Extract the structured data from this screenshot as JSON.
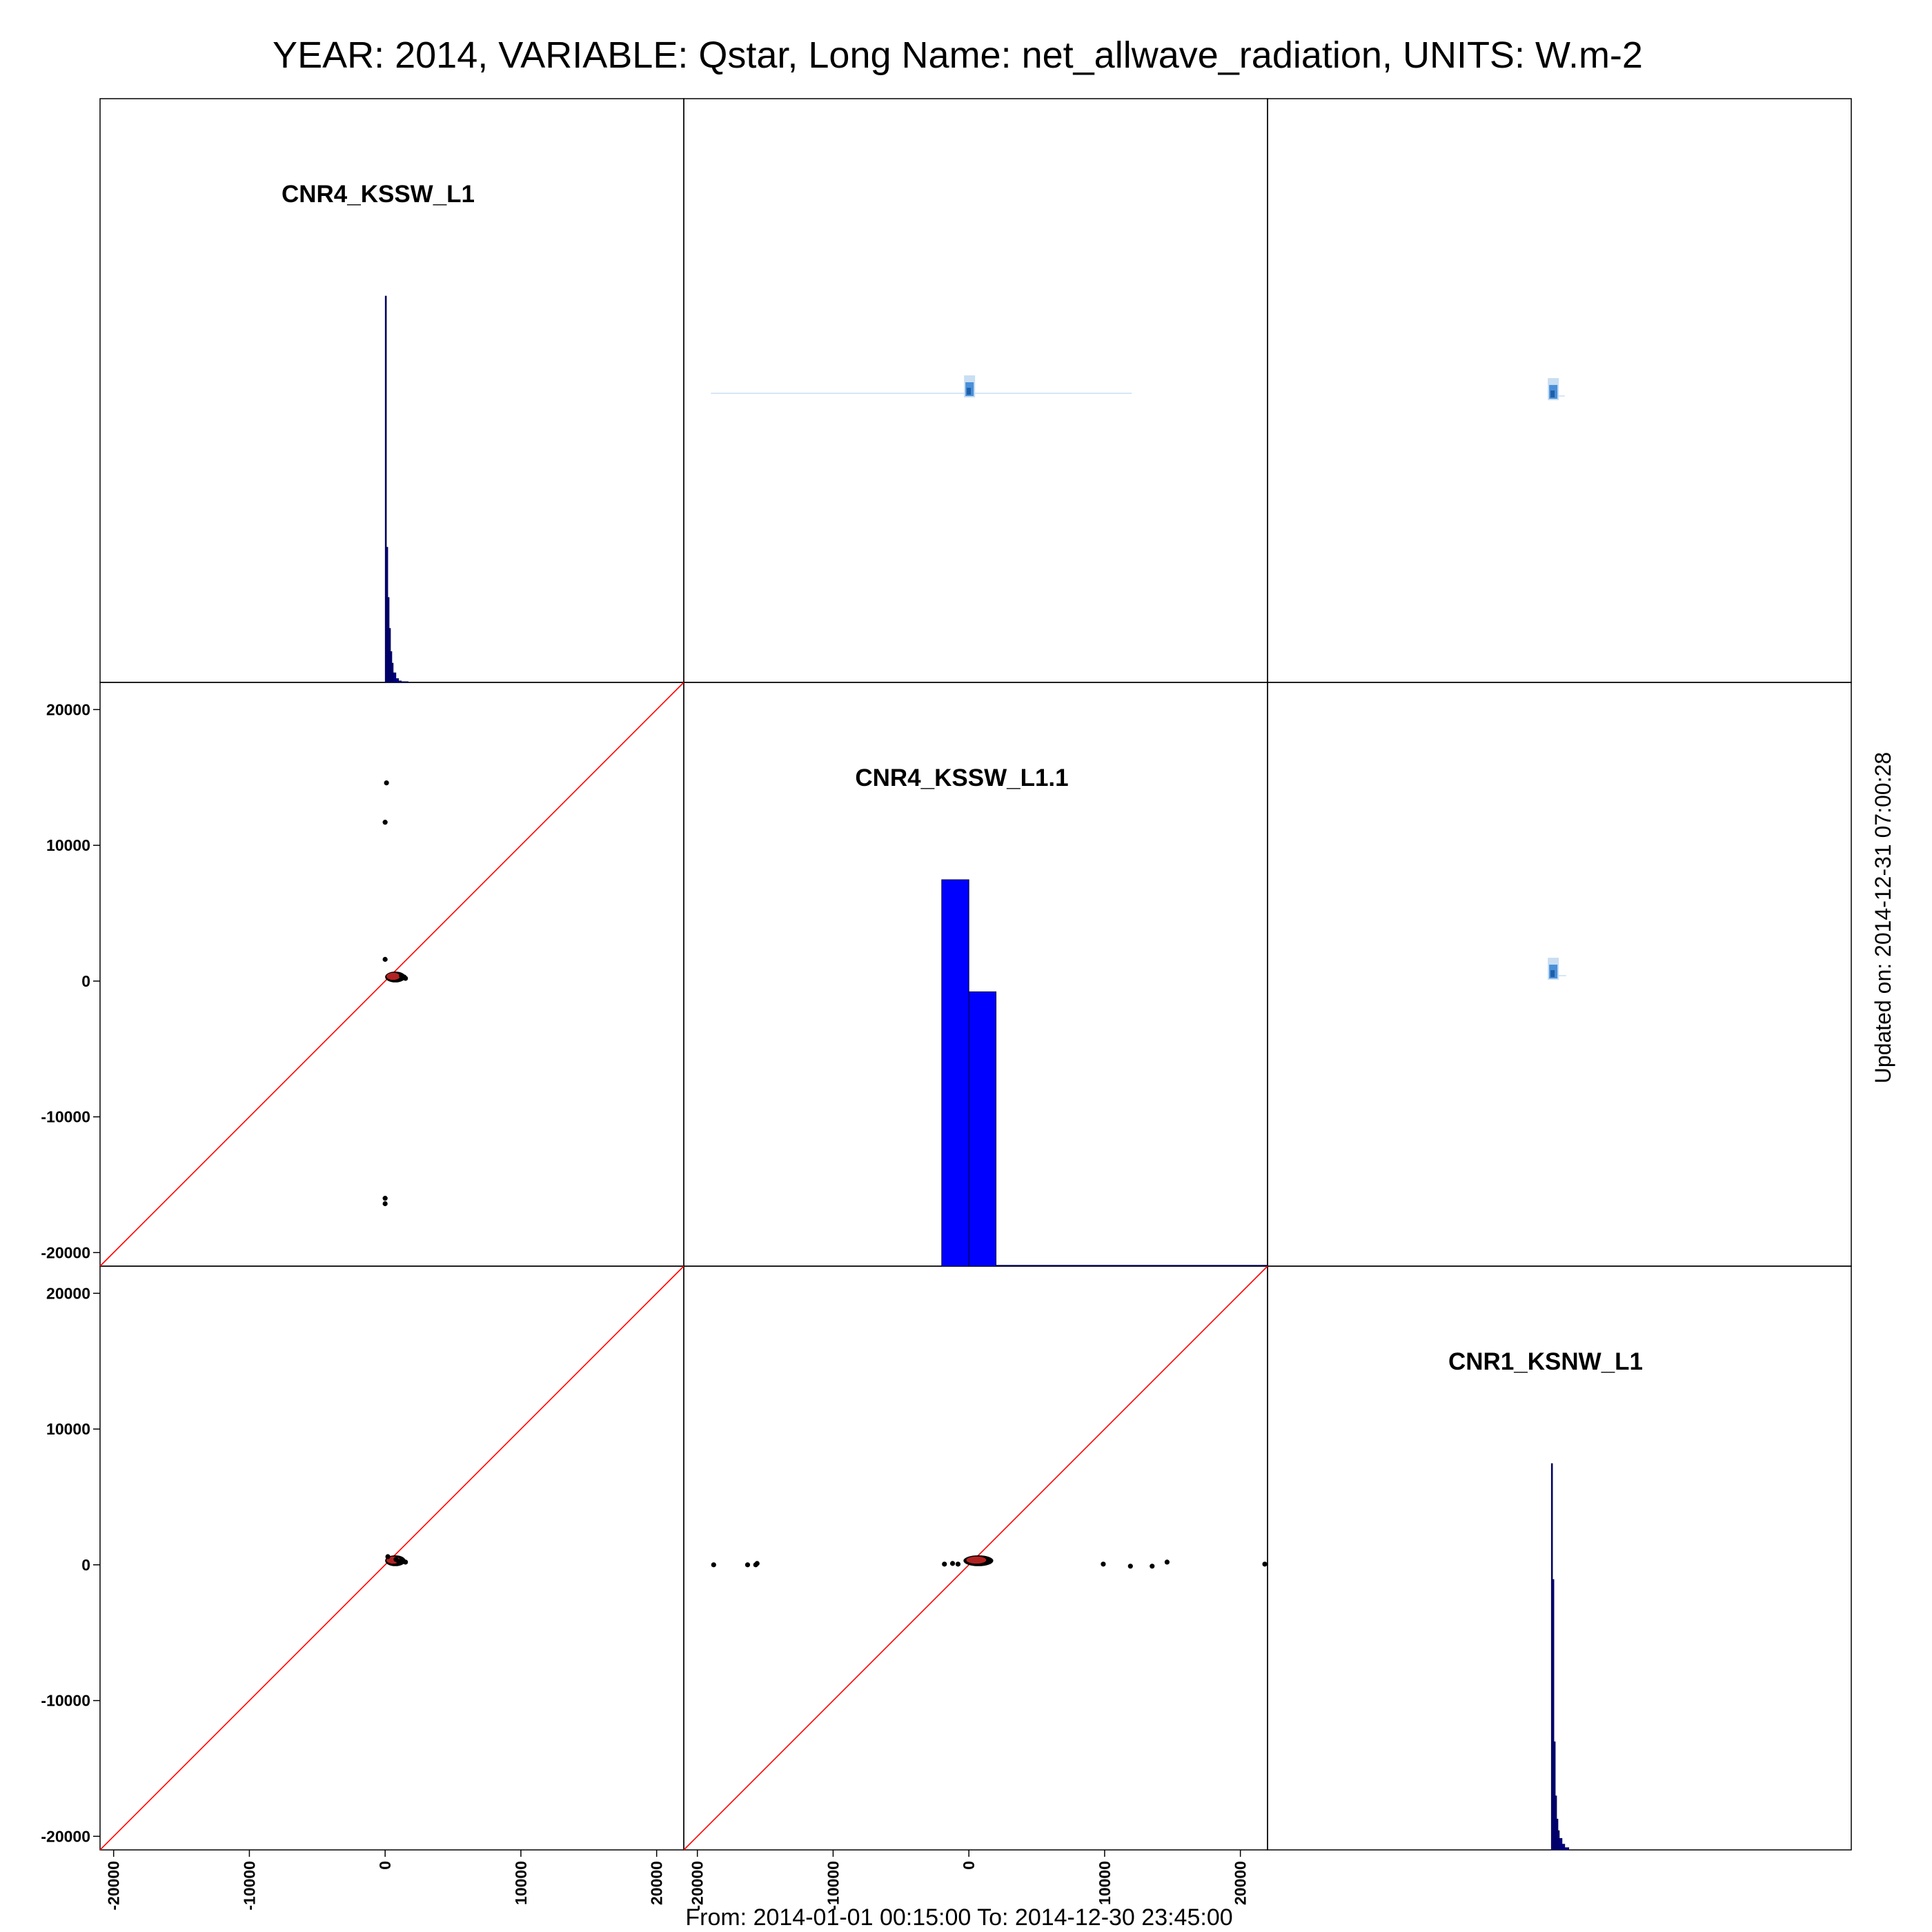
{
  "figure": {
    "title": "YEAR: 2014, VARIABLE: Qstar, Long Name: net_allwave_radiation, UNITS: W.m-2",
    "from_to": "From: 2014-01-01 00:15:00 To: 2014-12-30 23:45:00",
    "updated": "Updated on: 2014-12-31 07:00:28"
  },
  "chart_data": {
    "type": "scatter",
    "layout": "3x3 scatterplot matrix",
    "axis_range": [
      -21000,
      22000
    ],
    "ticks": [
      -20000,
      -10000,
      0,
      10000,
      20000
    ],
    "tick_labels": [
      "-20000",
      "-10000",
      "0",
      "10000",
      "20000"
    ],
    "grid": false,
    "reference_line": "y = x",
    "colors": {
      "points": "#000000",
      "reference_line": "#ff0000",
      "dense_points": "#b22222",
      "histogram_top": "#00008b",
      "histogram_mid": "#0000ff",
      "density": "#4a90d9"
    },
    "variables": [
      {
        "name": "CNR4_KSSW_L1",
        "histogram": {
          "bins": [
            {
              "x0": 0,
              "x1": 100,
              "count": 1.0
            },
            {
              "x0": 100,
              "x1": 200,
              "count": 0.35
            },
            {
              "x0": 200,
              "x1": 300,
              "count": 0.22
            },
            {
              "x0": 300,
              "x1": 400,
              "count": 0.14
            },
            {
              "x0": 400,
              "x1": 500,
              "count": 0.08
            },
            {
              "x0": 500,
              "x1": 600,
              "count": 0.05
            },
            {
              "x0": 600,
              "x1": 800,
              "count": 0.025
            },
            {
              "x0": 800,
              "x1": 1000,
              "count": 0.01
            },
            {
              "x0": 1000,
              "x1": 1200,
              "count": 0.004
            },
            {
              "x0": 1200,
              "x1": 1400,
              "count": 0.002
            },
            {
              "x0": 1400,
              "x1": 1700,
              "count": 0.001
            }
          ]
        }
      },
      {
        "name": "CNR4_KSSW_L1.1",
        "histogram": {
          "bins": [
            {
              "x0": -2000,
              "x1": 0,
              "count": 1.0
            },
            {
              "x0": 0,
              "x1": 2000,
              "count": 0.71
            },
            {
              "x0": 2000,
              "x1": 22000,
              "count": 0.002
            }
          ]
        }
      },
      {
        "name": "CNR1_KSNW_L1",
        "histogram": {
          "bins": [
            {
              "x0": -100,
              "x1": 0,
              "count": 1.0
            },
            {
              "x0": 0,
              "x1": 100,
              "count": 0.7
            },
            {
              "x0": 100,
              "x1": 200,
              "count": 0.28
            },
            {
              "x0": 200,
              "x1": 300,
              "count": 0.14
            },
            {
              "x0": 300,
              "x1": 400,
              "count": 0.08
            },
            {
              "x0": 400,
              "x1": 500,
              "count": 0.05
            },
            {
              "x0": 500,
              "x1": 700,
              "count": 0.03
            },
            {
              "x0": 700,
              "x1": 900,
              "count": 0.015
            },
            {
              "x0": 900,
              "x1": 1200,
              "count": 0.006
            }
          ]
        }
      }
    ],
    "scatter_panels": [
      {
        "x_var": "CNR4_KSSW_L1",
        "y_var": "CNR4_KSSW_L1.1",
        "dense_cluster": {
          "x": [
            0,
            1500
          ],
          "y": [
            -100,
            700
          ]
        },
        "points": [
          [
            100,
            14600
          ],
          [
            0,
            11700
          ],
          [
            0,
            1600
          ],
          [
            0,
            -16000
          ],
          [
            0,
            -16400
          ],
          [
            1200,
            400
          ],
          [
            1400,
            300
          ],
          [
            1500,
            200
          ]
        ]
      },
      {
        "x_var": "CNR4_KSSW_L1",
        "y_var": "CNR1_KSNW_L1",
        "dense_cluster": {
          "x": [
            0,
            1500
          ],
          "y": [
            -100,
            700
          ]
        },
        "points": [
          [
            1000,
            250
          ],
          [
            1300,
            300
          ],
          [
            1500,
            200
          ],
          [
            200,
            600
          ],
          [
            800,
            400
          ]
        ]
      },
      {
        "x_var": "CNR4_KSSW_L1.1",
        "y_var": "CNR1_KSNW_L1",
        "dense_cluster": {
          "x": [
            -400,
            1800
          ],
          "y": [
            -100,
            700
          ]
        },
        "points": [
          [
            -18800,
            0
          ],
          [
            -16300,
            0
          ],
          [
            -15700,
            0
          ],
          [
            -15600,
            100
          ],
          [
            -1800,
            50
          ],
          [
            -1200,
            100
          ],
          [
            -800,
            50
          ],
          [
            9900,
            50
          ],
          [
            11900,
            -100
          ],
          [
            13500,
            -100
          ],
          [
            14600,
            200
          ],
          [
            21800,
            50
          ]
        ]
      }
    ],
    "density_panels": [
      {
        "x_var": "CNR4_KSSW_L1.1",
        "y_var": "CNR4_KSSW_L1",
        "x_range": [
          -19000,
          12000
        ],
        "peak": [
          0,
          500
        ]
      },
      {
        "x_var": "CNR1_KSNW_L1",
        "y_var": "CNR4_KSSW_L1",
        "x_range": [
          -100,
          900
        ],
        "peak": [
          0,
          300
        ]
      },
      {
        "x_var": "CNR1_KSNW_L1",
        "y_var": "CNR4_KSSW_L1.1",
        "x_range": [
          -200,
          1000
        ],
        "peak": [
          0,
          600
        ]
      }
    ]
  }
}
